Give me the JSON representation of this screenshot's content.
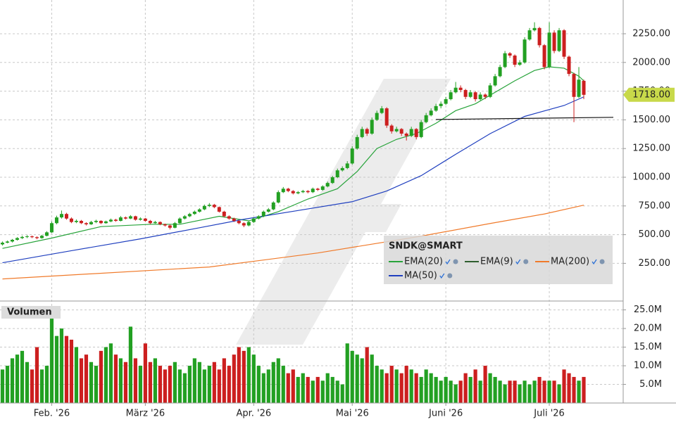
{
  "chart_data": {
    "type": "candlestick",
    "xlim": [
      -0.5,
      126
    ],
    "xticks": [
      {
        "value": 10,
        "label": "Feb. '26"
      },
      {
        "value": 29,
        "label": "März '26"
      },
      {
        "value": 51,
        "label": "Apr. '26"
      },
      {
        "value": 71,
        "label": "Mai '26"
      },
      {
        "value": 90,
        "label": "Juni '26"
      },
      {
        "value": 111,
        "label": "Juli '26"
      }
    ],
    "ylim": [
      -60,
      2544
    ],
    "yticks": [
      {
        "value": 250,
        "label": "250.00"
      },
      {
        "value": 500,
        "label": "500.00"
      },
      {
        "value": 750,
        "label": "750.00"
      },
      {
        "value": 1000,
        "label": "1000.00"
      },
      {
        "value": 1250,
        "label": "1250.00"
      },
      {
        "value": 1500,
        "label": "1500.00"
      },
      {
        "value": 1750,
        "label": "1750.00"
      },
      {
        "value": 2000,
        "label": "2000.00"
      },
      {
        "value": 2250,
        "label": "2250.00"
      }
    ],
    "grid": true,
    "up_color": "#22a022",
    "down_color": "#cc1f1f",
    "open": [
      415,
      430,
      440,
      455,
      470,
      480,
      485,
      478,
      470,
      490,
      520,
      600,
      650,
      680,
      640,
      610,
      620,
      600,
      590,
      610,
      620,
      600,
      615,
      630,
      620,
      650,
      640,
      660,
      630,
      640,
      620,
      600,
      610,
      590,
      580,
      560,
      600,
      640,
      660,
      680,
      700,
      720,
      750,
      760,
      740,
      700,
      660,
      640,
      620,
      600,
      580,
      610,
      640,
      660,
      700,
      720,
      780,
      870,
      900,
      880,
      860,
      870,
      880,
      870,
      900,
      890,
      920,
      950,
      1000,
      1060,
      1080,
      1120,
      1250,
      1350,
      1420,
      1380,
      1500,
      1560,
      1600,
      1450,
      1400,
      1420,
      1380,
      1360,
      1420,
      1350,
      1480,
      1540,
      1580,
      1620,
      1640,
      1680,
      1740,
      1780,
      1760,
      1700,
      1740,
      1680,
      1720,
      1700,
      1800,
      1880,
      1960,
      2080,
      2060,
      1980,
      2000,
      2200,
      2280,
      2300,
      2150,
      1960,
      2260,
      2100,
      2280,
      2050,
      1900,
      1700,
      1840
    ],
    "high": [
      440,
      448,
      462,
      478,
      490,
      495,
      492,
      485,
      498,
      530,
      615,
      665,
      710,
      690,
      650,
      632,
      628,
      608,
      620,
      630,
      625,
      622,
      640,
      638,
      662,
      658,
      670,
      665,
      650,
      645,
      628,
      620,
      615,
      596,
      588,
      610,
      650,
      670,
      690,
      710,
      730,
      762,
      775,
      768,
      745,
      708,
      668,
      648,
      628,
      608,
      620,
      650,
      670,
      710,
      732,
      790,
      885,
      915,
      908,
      888,
      880,
      890,
      888,
      910,
      908,
      930,
      962,
      1012,
      1075,
      1095,
      1140,
      1270,
      1370,
      1440,
      1432,
      1520,
      1580,
      1620,
      1610,
      1462,
      1440,
      1428,
      1390,
      1440,
      1428,
      1500,
      1560,
      1600,
      1640,
      1660,
      1700,
      1760,
      1830,
      1800,
      1770,
      1760,
      1750,
      1740,
      1730,
      1820,
      1900,
      1980,
      2100,
      2090,
      2070,
      2020,
      2220,
      2300,
      2350,
      2310,
      2160,
      2350,
      2280,
      2300,
      2290,
      2060,
      1910,
      1960,
      1850
    ],
    "low": [
      405,
      425,
      432,
      448,
      462,
      470,
      470,
      460,
      465,
      485,
      515,
      590,
      640,
      630,
      600,
      600,
      592,
      580,
      585,
      600,
      592,
      595,
      608,
      612,
      615,
      632,
      635,
      622,
      622,
      612,
      592,
      595,
      582,
      570,
      545,
      555,
      595,
      632,
      652,
      672,
      692,
      712,
      740,
      730,
      692,
      650,
      630,
      610,
      590,
      565,
      572,
      602,
      632,
      652,
      692,
      712,
      772,
      862,
      870,
      850,
      852,
      862,
      860,
      862,
      880,
      882,
      912,
      942,
      992,
      1050,
      1070,
      1110,
      1240,
      1340,
      1360,
      1370,
      1490,
      1550,
      1430,
      1380,
      1390,
      1360,
      1320,
      1350,
      1330,
      1340,
      1470,
      1530,
      1570,
      1600,
      1630,
      1670,
      1730,
      1740,
      1680,
      1690,
      1660,
      1670,
      1680,
      1690,
      1790,
      1870,
      1950,
      2040,
      1960,
      1970,
      1990,
      2190,
      2270,
      2130,
      1940,
      1950,
      2080,
      2090,
      2030,
      1880,
      1480,
      1690,
      1680
    ],
    "close": [
      430,
      440,
      455,
      470,
      480,
      485,
      478,
      470,
      490,
      520,
      600,
      650,
      680,
      640,
      610,
      620,
      600,
      590,
      610,
      620,
      600,
      615,
      630,
      620,
      650,
      640,
      660,
      630,
      640,
      620,
      600,
      610,
      590,
      580,
      560,
      600,
      640,
      660,
      680,
      700,
      720,
      750,
      760,
      740,
      700,
      660,
      640,
      620,
      600,
      580,
      610,
      640,
      660,
      700,
      720,
      780,
      870,
      900,
      880,
      860,
      870,
      880,
      870,
      900,
      890,
      920,
      950,
      1000,
      1060,
      1080,
      1120,
      1250,
      1350,
      1420,
      1380,
      1500,
      1560,
      1600,
      1450,
      1400,
      1420,
      1380,
      1360,
      1420,
      1350,
      1480,
      1540,
      1580,
      1620,
      1640,
      1680,
      1740,
      1780,
      1760,
      1700,
      1740,
      1680,
      1720,
      1700,
      1800,
      1880,
      1960,
      2080,
      2060,
      1980,
      2000,
      2200,
      2280,
      2300,
      2150,
      1960,
      2260,
      2100,
      2280,
      2050,
      1900,
      1700,
      1850,
      1718
    ],
    "volume_title": "Volumen",
    "volume_ylim": [
      0,
      27
    ],
    "volume_yticks": [
      {
        "value": 5,
        "label": "5.0M"
      },
      {
        "value": 10,
        "label": "10.0M"
      },
      {
        "value": 15,
        "label": "15.0M"
      },
      {
        "value": 20,
        "label": "20.0M"
      },
      {
        "value": 25,
        "label": "25.0M"
      }
    ],
    "volume": [
      9,
      10,
      12,
      13,
      14,
      11,
      9,
      15,
      9,
      10,
      25,
      18,
      20,
      18,
      17,
      15,
      12,
      13,
      11,
      10,
      14,
      15,
      16,
      13,
      12,
      11,
      20.5,
      12,
      10,
      16,
      11,
      12,
      10,
      9,
      10,
      11,
      9,
      8,
      10,
      12,
      11,
      9,
      10,
      11,
      9,
      12,
      10,
      13,
      15,
      14,
      15,
      13,
      10,
      8,
      9,
      11,
      12,
      10,
      8,
      9,
      7,
      8,
      7,
      6,
      7,
      6,
      8,
      7,
      6,
      5,
      16,
      14,
      13,
      12,
      15,
      13,
      10,
      9,
      8,
      10,
      9,
      8,
      10,
      9,
      8,
      7,
      9,
      8,
      7,
      6,
      7,
      6,
      5,
      6,
      8,
      7,
      9,
      6,
      10,
      8,
      7,
      6,
      5,
      6,
      6,
      5,
      6,
      5,
      6,
      7,
      6,
      6,
      6,
      5,
      9,
      8,
      7,
      6,
      7
    ],
    "series": [
      {
        "name": "EMA(20)",
        "color": "#27a33a",
        "x": [
          0,
          10,
          20,
          30,
          36,
          44,
          50,
          56,
          62,
          68,
          72,
          76,
          80,
          84,
          88,
          92,
          96,
          100,
          104,
          108,
          111,
          114,
          117,
          118
        ],
        "values": [
          380,
          470,
          570,
          590,
          590,
          660,
          620,
          700,
          810,
          900,
          1050,
          1250,
          1330,
          1380,
          1470,
          1580,
          1640,
          1740,
          1840,
          1930,
          1962,
          1950,
          1880,
          1840
        ]
      },
      {
        "name": "EMA(9)",
        "color": "#2e5e2e"
      },
      {
        "name": "MA(200)",
        "color": "#f07a2a",
        "x": [
          0,
          42,
          64,
          85,
          99,
          110,
          118
        ],
        "values": [
          114,
          218,
          340,
          487,
          597,
          680,
          757
        ]
      },
      {
        "name": "MA(50)",
        "color": "#1f3fbf",
        "x": [
          0,
          14,
          28,
          40,
          49,
          60,
          71,
          78,
          85,
          92,
          99,
          106,
          114,
          118
        ],
        "values": [
          255,
          360,
          463,
          560,
          634,
          710,
          787,
          880,
          1014,
          1200,
          1380,
          1530,
          1625,
          1700
        ]
      }
    ],
    "legend": {
      "title": "SNDK@SMART",
      "position": "lower right"
    },
    "trendline": {
      "x": [
        88,
        124
      ],
      "values": [
        1503,
        1522
      ],
      "color": "#111111"
    },
    "last_price": {
      "value": 1718,
      "label": "1718.00",
      "color": "#c8d94a"
    }
  }
}
